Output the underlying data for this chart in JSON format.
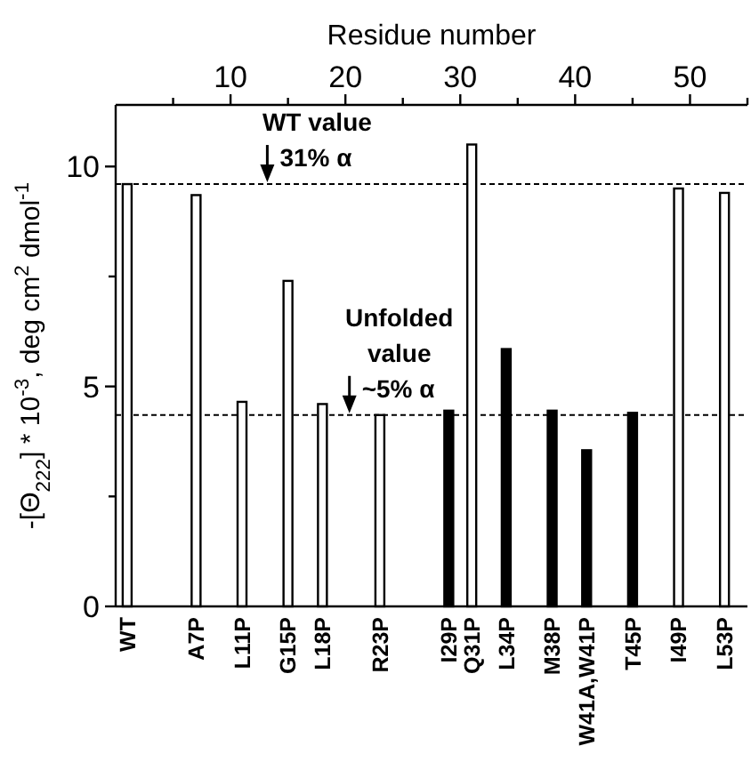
{
  "chart_data": {
    "type": "bar",
    "x": [
      1,
      7,
      11,
      15,
      18,
      23,
      29,
      31,
      34,
      38,
      41,
      45,
      49,
      53
    ],
    "values": [
      9.6,
      9.35,
      4.65,
      7.4,
      4.6,
      4.35,
      4.45,
      10.5,
      5.85,
      4.45,
      3.55,
      4.4,
      9.5,
      9.4
    ],
    "colors": [
      "#ffffff",
      "#ffffff",
      "#ffffff",
      "#ffffff",
      "#ffffff",
      "#ffffff",
      "#000000",
      "#ffffff",
      "#000000",
      "#000000",
      "#000000",
      "#000000",
      "#ffffff",
      "#ffffff"
    ],
    "ylabel": "-[Θ$_{222}$] * 10$^{-3}$, deg cm$^{2}$ dmol$^{-1}$",
    "xlabel": "Residue number",
    "xlim": [
      0,
      55
    ],
    "xticks": [
      {
        "value": 5,
        "label": null
      },
      10,
      {
        "value": 15,
        "label": null
      },
      20,
      {
        "value": 25,
        "label": null
      },
      30,
      {
        "value": 35,
        "label": null
      },
      40,
      {
        "value": 45,
        "label": null
      },
      50,
      {
        "value": 55,
        "label": null
      }
    ],
    "ylim": [
      0,
      11.4
    ],
    "yticks": [
      0,
      {
        "value": 2.5,
        "label": null
      },
      5,
      {
        "value": 7.5,
        "label": null
      },
      10
    ],
    "ref_lines": [
      {
        "axis": "y",
        "value": 9.6,
        "line_style": "dashed"
      },
      {
        "axis": "y",
        "value": 4.35,
        "line_style": "dashed"
      }
    ],
    "annotations": [
      "WT value\n31% α",
      "Unfolded\nvalue\n~5% α",
      {
        "text": "WT",
        "x": 1,
        "y": 0
      },
      {
        "text": "A7P",
        "x": 7,
        "y": 0
      },
      {
        "text": "L11P",
        "x": 11,
        "y": 0
      },
      {
        "text": "G15P",
        "x": 15,
        "y": 0
      },
      {
        "text": "L18P",
        "x": 18,
        "y": 0
      },
      {
        "text": "R23P",
        "x": 23,
        "y": 0
      },
      {
        "text": "I29P",
        "x": 29,
        "y": 0
      },
      {
        "text": "Q31P",
        "x": 31,
        "y": 0
      },
      {
        "text": "L34P",
        "x": 34,
        "y": 0
      },
      {
        "text": "M38P",
        "x": 38,
        "y": 0
      },
      {
        "text": "W41A,W41P",
        "x": 41,
        "y": 0
      },
      {
        "text": "T45P",
        "x": 45,
        "y": 0
      },
      {
        "text": "I49P",
        "x": 49,
        "y": 0
      },
      {
        "text": "L53P",
        "x": 53,
        "y": 0
      }
    ]
  }
}
